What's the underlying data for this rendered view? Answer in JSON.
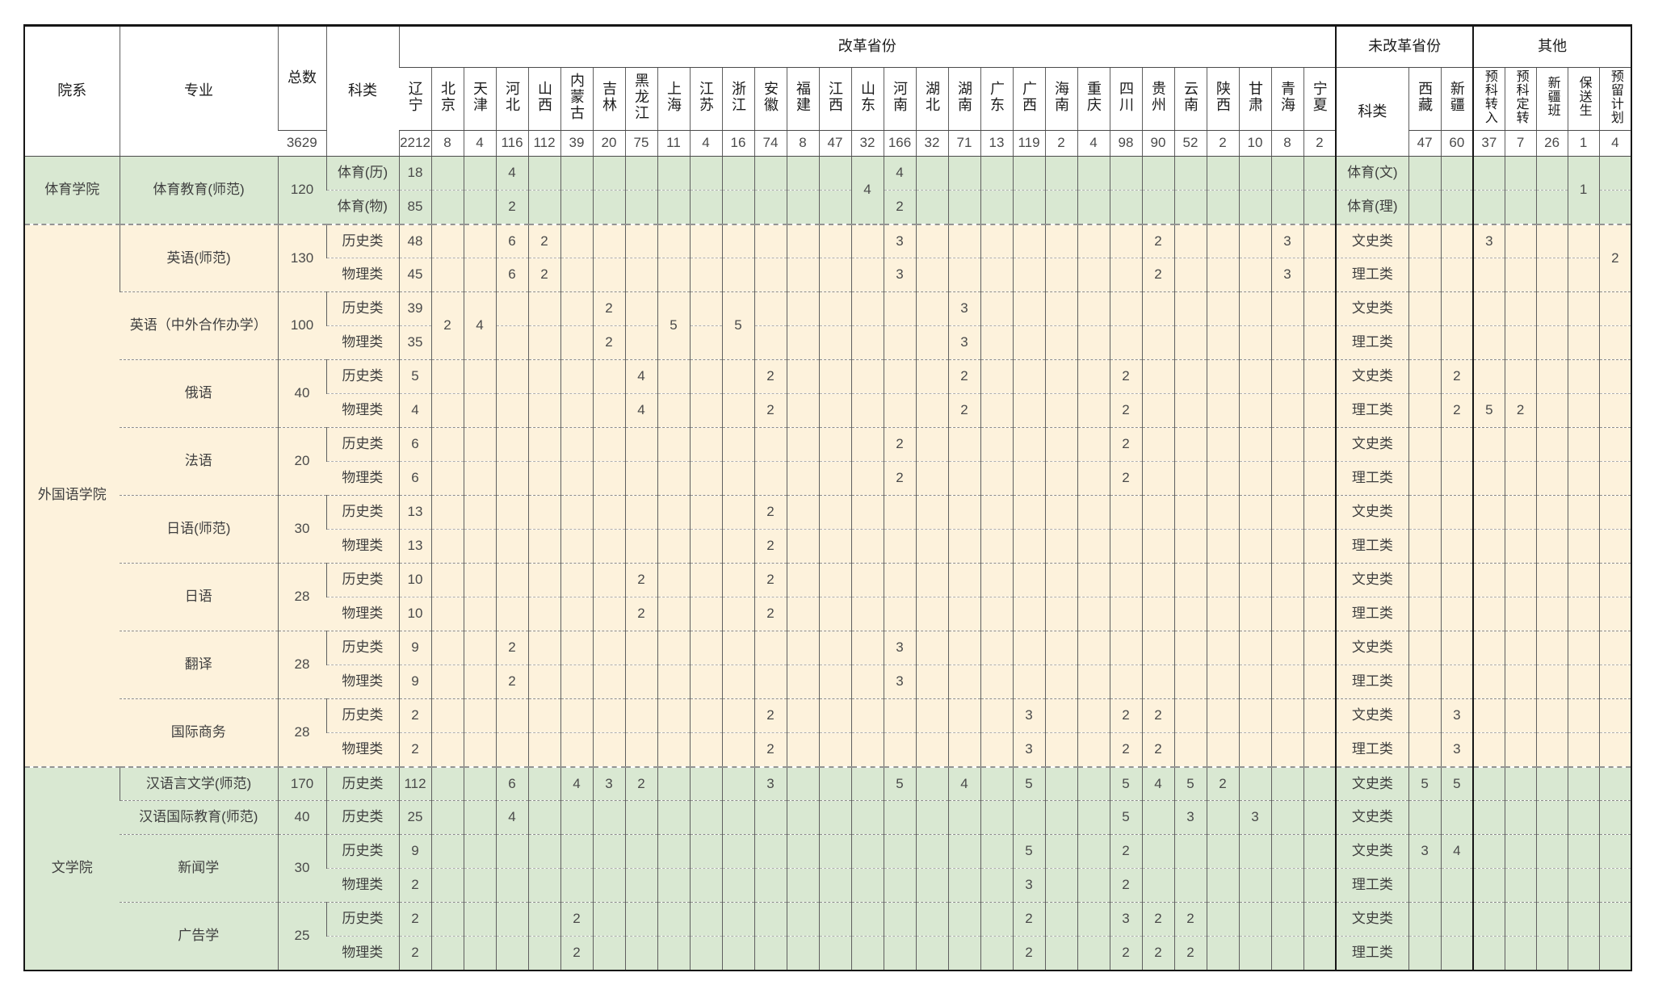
{
  "colors": {
    "section_green": "#d9e8d2",
    "section_cream": "#fdf2dc",
    "border_dark": "#161616"
  },
  "header": {
    "dept": "院系",
    "major": "专业",
    "total": "总数",
    "kelei": "科类",
    "reform_group": "改革省份",
    "reform_provinces": [
      "辽宁",
      "北京",
      "天津",
      "河北",
      "山西",
      "内蒙古",
      "吉林",
      "黑龙江",
      "上海",
      "江苏",
      "浙江",
      "安徽",
      "福建",
      "江西",
      "山东",
      "河南",
      "湖北",
      "湖南",
      "广东",
      "广西",
      "海南",
      "重庆",
      "四川",
      "贵州",
      "云南",
      "陕西",
      "甘肃",
      "青海",
      "宁夏"
    ],
    "nonreform_group": "未改革省份",
    "nonreform_kelei": "科类",
    "nonreform_provinces": [
      "西藏",
      "新疆"
    ],
    "other_group": "其他",
    "other_cols": [
      "预科转入",
      "预科定转",
      "新疆班",
      "保送生",
      "预留计划"
    ]
  },
  "totals": {
    "zongshu": "3629",
    "reform": [
      "2212",
      "8",
      "4",
      "116",
      "112",
      "39",
      "20",
      "75",
      "11",
      "4",
      "16",
      "74",
      "8",
      "47",
      "32",
      "166",
      "32",
      "71",
      "13",
      "119",
      "2",
      "4",
      "98",
      "90",
      "52",
      "2",
      "10",
      "8",
      "2"
    ],
    "nonreform": [
      "47",
      "60"
    ],
    "other": [
      "37",
      "7",
      "26",
      "1",
      "4"
    ]
  },
  "sections": [
    {
      "name": "体育学院",
      "color": "green",
      "majors": [
        {
          "name": "体育教育(师范)",
          "total": "120",
          "rows": [
            {
              "kelei": "体育(历)",
              "reform": {
                "0": "18",
                "3": "4",
                "15": "4"
              },
              "nKelei": "体育(文)"
            },
            {
              "kelei": "体育(物)",
              "reform": {
                "0": "85",
                "3": "2",
                "15": "2"
              },
              "nKelei": "体育(理)"
            }
          ],
          "merged": {
            "reform": {
              "14": "4"
            },
            "other": {
              "3": "1"
            }
          }
        }
      ]
    },
    {
      "name": "外国语学院",
      "color": "cream",
      "majors": [
        {
          "name": "英语(师范)",
          "total": "130",
          "rows": [
            {
              "kelei": "历史类",
              "reform": {
                "0": "48",
                "3": "6",
                "4": "2",
                "15": "3",
                "23": "2",
                "27": "3"
              },
              "nKelei": "文史类",
              "other": {
                "0": "3"
              }
            },
            {
              "kelei": "物理类",
              "reform": {
                "0": "45",
                "3": "6",
                "4": "2",
                "15": "3",
                "23": "2",
                "27": "3"
              },
              "nKelei": "理工类"
            }
          ],
          "merged": {
            "other": {
              "4": "2"
            }
          }
        },
        {
          "name": "英语（中外合作办学）",
          "total": "100",
          "rows": [
            {
              "kelei": "历史类",
              "reform": {
                "0": "39",
                "6": "2",
                "17": "3"
              },
              "nKelei": "文史类"
            },
            {
              "kelei": "物理类",
              "reform": {
                "0": "35",
                "6": "2",
                "17": "3"
              },
              "nKelei": "理工类"
            }
          ],
          "merged": {
            "reform": {
              "1": "2",
              "2": "4",
              "8": "5",
              "10": "5"
            }
          }
        },
        {
          "name": "俄语",
          "total": "40",
          "rows": [
            {
              "kelei": "历史类",
              "reform": {
                "0": "5",
                "7": "4",
                "11": "2",
                "17": "2",
                "22": "2"
              },
              "nKelei": "文史类",
              "nonreform": {
                "1": "2"
              }
            },
            {
              "kelei": "物理类",
              "reform": {
                "0": "4",
                "7": "4",
                "11": "2",
                "17": "2",
                "22": "2"
              },
              "nKelei": "理工类",
              "nonreform": {
                "1": "2"
              },
              "other": {
                "0": "5",
                "1": "2"
              }
            }
          ]
        },
        {
          "name": "法语",
          "total": "20",
          "rows": [
            {
              "kelei": "历史类",
              "reform": {
                "0": "6",
                "15": "2",
                "22": "2"
              },
              "nKelei": "文史类"
            },
            {
              "kelei": "物理类",
              "reform": {
                "0": "6",
                "15": "2",
                "22": "2"
              },
              "nKelei": "理工类"
            }
          ]
        },
        {
          "name": "日语(师范)",
          "total": "30",
          "rows": [
            {
              "kelei": "历史类",
              "reform": {
                "0": "13",
                "11": "2"
              },
              "nKelei": "文史类"
            },
            {
              "kelei": "物理类",
              "reform": {
                "0": "13",
                "11": "2"
              },
              "nKelei": "理工类"
            }
          ]
        },
        {
          "name": "日语",
          "total": "28",
          "rows": [
            {
              "kelei": "历史类",
              "reform": {
                "0": "10",
                "7": "2",
                "11": "2"
              },
              "nKelei": "文史类"
            },
            {
              "kelei": "物理类",
              "reform": {
                "0": "10",
                "7": "2",
                "11": "2"
              },
              "nKelei": "理工类"
            }
          ]
        },
        {
          "name": "翻译",
          "total": "28",
          "rows": [
            {
              "kelei": "历史类",
              "reform": {
                "0": "9",
                "3": "2",
                "15": "3"
              },
              "nKelei": "文史类"
            },
            {
              "kelei": "物理类",
              "reform": {
                "0": "9",
                "3": "2",
                "15": "3"
              },
              "nKelei": "理工类"
            }
          ]
        },
        {
          "name": "国际商务",
          "total": "28",
          "rows": [
            {
              "kelei": "历史类",
              "reform": {
                "0": "2",
                "11": "2",
                "19": "3",
                "22": "2",
                "23": "2"
              },
              "nKelei": "文史类",
              "nonreform": {
                "1": "3"
              }
            },
            {
              "kelei": "物理类",
              "reform": {
                "0": "2",
                "11": "2",
                "19": "3",
                "22": "2",
                "23": "2"
              },
              "nKelei": "理工类",
              "nonreform": {
                "1": "3"
              }
            }
          ]
        }
      ]
    },
    {
      "name": "文学院",
      "color": "green",
      "majors": [
        {
          "name": "汉语言文学(师范)",
          "total": "170",
          "rows": [
            {
              "kelei": "历史类",
              "reform": {
                "0": "112",
                "3": "6",
                "5": "4",
                "6": "3",
                "7": "2",
                "11": "3",
                "15": "5",
                "17": "4",
                "19": "5",
                "22": "5",
                "23": "4",
                "24": "5",
                "25": "2"
              },
              "nKelei": "文史类",
              "nonreform": {
                "0": "5",
                "1": "5"
              }
            }
          ]
        },
        {
          "name": "汉语国际教育(师范)",
          "total": "40",
          "rows": [
            {
              "kelei": "历史类",
              "reform": {
                "0": "25",
                "3": "4",
                "22": "5",
                "24": "3",
                "26": "3"
              },
              "nKelei": "文史类"
            }
          ]
        },
        {
          "name": "新闻学",
          "total": "30",
          "rows": [
            {
              "kelei": "历史类",
              "reform": {
                "0": "9",
                "19": "5",
                "22": "2"
              },
              "nKelei": "文史类",
              "nonreform": {
                "0": "3",
                "1": "4"
              }
            },
            {
              "kelei": "物理类",
              "reform": {
                "0": "2",
                "19": "3",
                "22": "2"
              },
              "nKelei": "理工类"
            }
          ]
        },
        {
          "name": "广告学",
          "total": "25",
          "rows": [
            {
              "kelei": "历史类",
              "reform": {
                "0": "2",
                "5": "2",
                "19": "2",
                "22": "3",
                "23": "2",
                "24": "2"
              },
              "nKelei": "文史类"
            },
            {
              "kelei": "物理类",
              "reform": {
                "0": "2",
                "5": "2",
                "19": "2",
                "22": "2",
                "23": "2",
                "24": "2"
              },
              "nKelei": "理工类"
            }
          ]
        }
      ]
    }
  ]
}
